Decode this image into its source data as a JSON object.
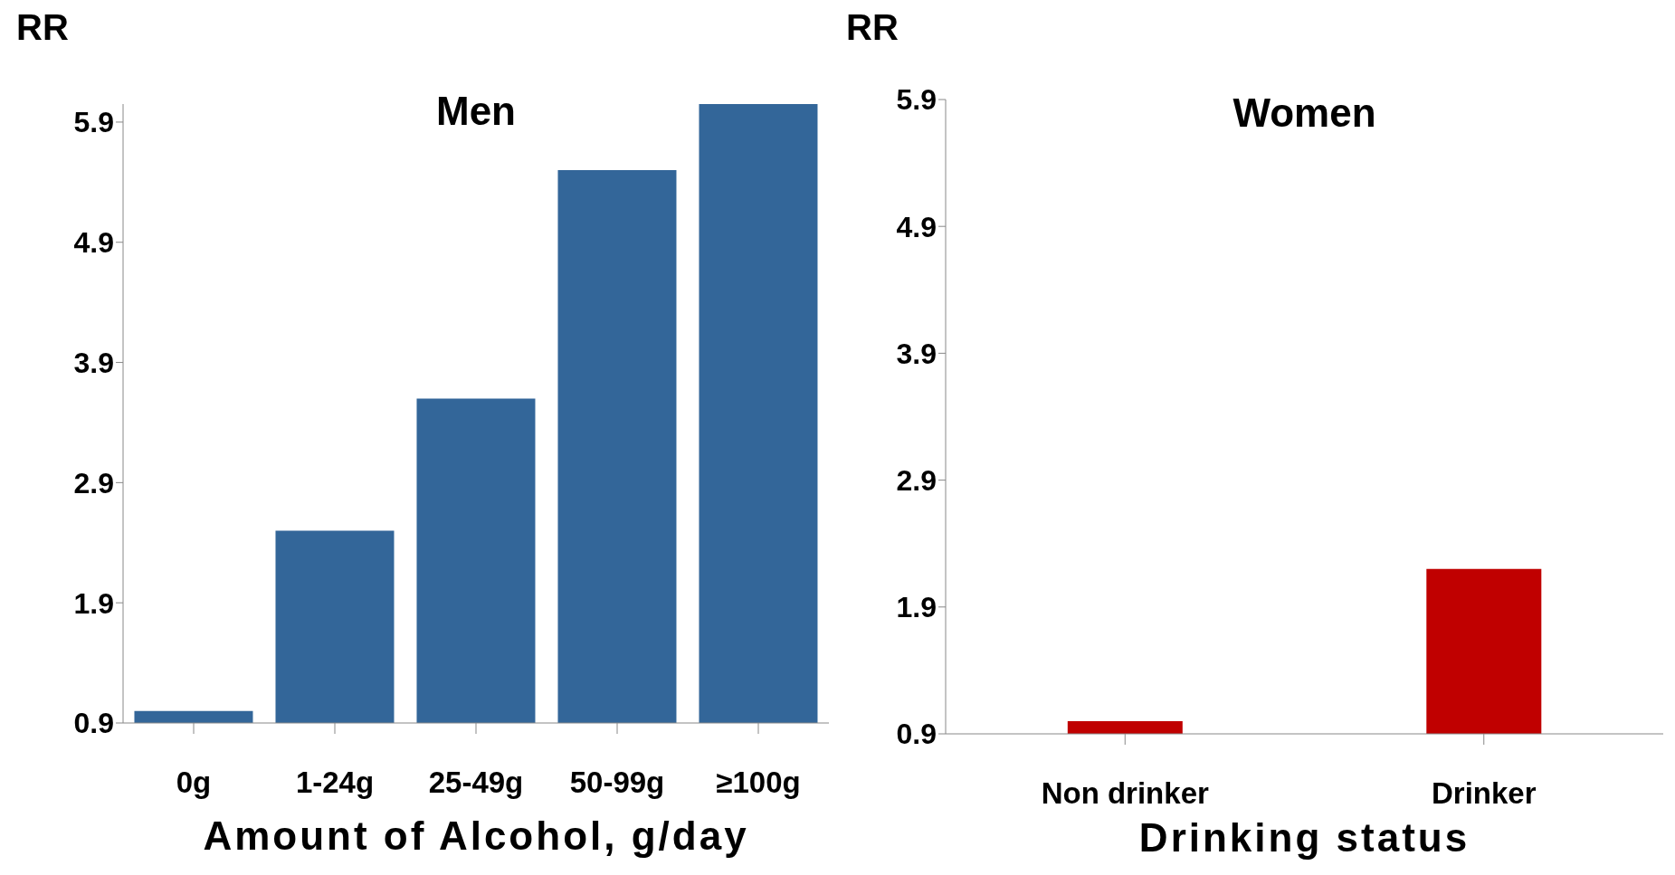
{
  "chart_data": [
    {
      "type": "bar",
      "title": "Men",
      "ylabel": "RR",
      "xlabel": "Amount of Alcohol, g/day",
      "categories": [
        "0g",
        "1-24g",
        "25-49g",
        "50-99g",
        "≥100g"
      ],
      "values": [
        1.0,
        2.5,
        3.6,
        5.5,
        6.05
      ],
      "color": "#336699",
      "ylim": [
        0.9,
        6.05
      ],
      "yticks": [
        0.9,
        1.9,
        2.9,
        3.9,
        4.9,
        5.9
      ]
    },
    {
      "type": "bar",
      "title": "Women",
      "ylabel": "RR",
      "xlabel": "Drinking status",
      "categories": [
        "Non drinker",
        "Drinker"
      ],
      "values": [
        1.0,
        2.2
      ],
      "color": "#c00000",
      "ylim": [
        0.9,
        5.9
      ],
      "yticks": [
        0.9,
        1.9,
        2.9,
        3.9,
        4.9,
        5.9
      ]
    }
  ]
}
